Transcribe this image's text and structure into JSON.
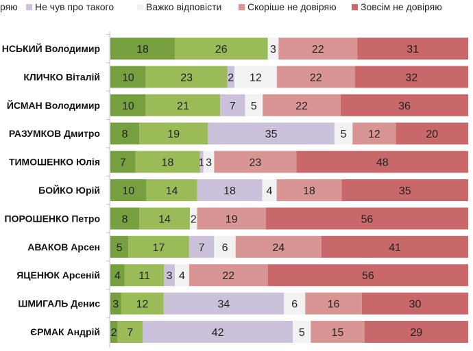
{
  "chart_data": {
    "type": "bar",
    "orientation": "horizontal",
    "stacked": true,
    "categories": [
      "НСЬКИЙ Володимир",
      "КЛИЧКО Віталій",
      "ЙСМАН Володимир",
      "РАЗУМКОВ Дмитро",
      "ТИМОШЕНКО Юлія",
      "БОЙКО Юрій",
      "ПОРОШЕНКО Петро",
      "АВАКОВ Арсен",
      "ЯЦЕНЮК Арсеній",
      "ШМИГАЛЬ Денис",
      "ЄРМАК Андрій"
    ],
    "series": [
      {
        "color": "#76a040",
        "values": [
          18,
          10,
          10,
          8,
          7,
          10,
          8,
          5,
          4,
          3,
          2
        ]
      },
      {
        "name": "ряю",
        "color": "#9bbb59",
        "values": [
          26,
          23,
          21,
          19,
          18,
          14,
          14,
          17,
          11,
          12,
          7
        ]
      },
      {
        "name": "Не чув про такого",
        "color": "#ccc1da",
        "values": [
          0,
          2,
          7,
          35,
          1,
          18,
          0,
          7,
          3,
          34,
          42
        ]
      },
      {
        "name": "Важко відповісти",
        "color": "#f2f2f2",
        "values": [
          3,
          12,
          5,
          5,
          3,
          4,
          2,
          6,
          4,
          6,
          5
        ]
      },
      {
        "name": "Скоріше не довіряю",
        "color": "#d99594",
        "values": [
          22,
          22,
          22,
          12,
          23,
          18,
          19,
          24,
          22,
          16,
          15
        ]
      },
      {
        "name": "Зовсім не довіряю",
        "color": "#c9686a",
        "values": [
          31,
          32,
          36,
          20,
          48,
          35,
          56,
          41,
          56,
          30,
          29
        ]
      }
    ],
    "legend_position": "top",
    "data_labels": true,
    "grid": false
  }
}
